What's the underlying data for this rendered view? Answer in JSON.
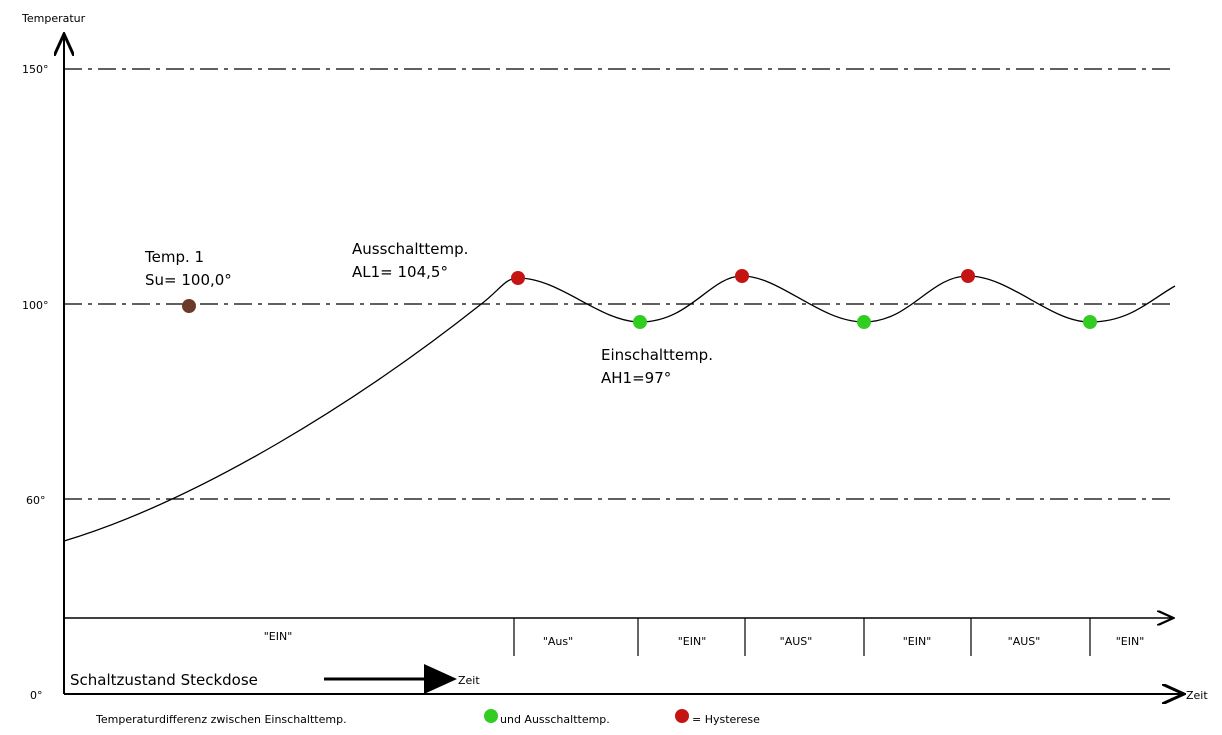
{
  "y_axis": {
    "title": "Temperatur",
    "ticks": [
      "150°",
      "100°",
      "60°",
      "0°"
    ]
  },
  "x_axis": {
    "title": "Zeit"
  },
  "setpoint": {
    "line1": "Temp. 1",
    "line2": "Su= 100,0°",
    "value": 100.0
  },
  "off_temp": {
    "line1": "Ausschalttemp.",
    "line2": "AL1= 104,5°",
    "value": 104.5
  },
  "on_temp": {
    "line1": "Einschalttemp.",
    "line2": "AH1=97°",
    "value": 97
  },
  "switch_states": [
    "\"EIN\"",
    "\"Aus\"",
    "\"EIN\"",
    "\"AUS\"",
    "\"EIN\"",
    "\"AUS\"",
    "\"EIN\""
  ],
  "switch_arrow": {
    "label": "Schaltzustand Steckdose",
    "target": "Zeit"
  },
  "legend": {
    "text1": "Temperaturdifferenz zwischen Einschalttemp.",
    "text2": "und Ausschalttemp.",
    "text3": "= Hysterese"
  },
  "colors": {
    "setpoint_dot": "#6b3a2a",
    "off_dot": "#c41414",
    "on_dot": "#33cc22",
    "line": "#000000"
  }
}
